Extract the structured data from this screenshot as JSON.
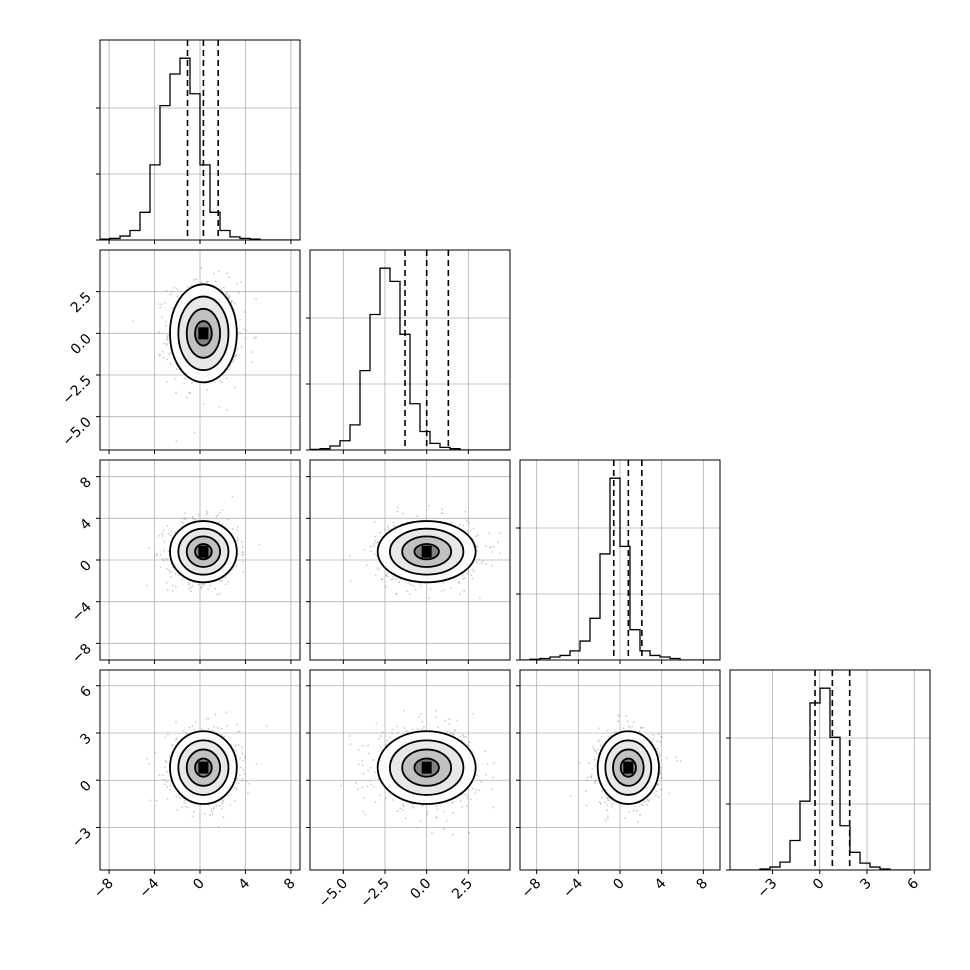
{
  "chart_data": {
    "type": "corner",
    "grid_enabled": true,
    "colors": {
      "line": "#000000",
      "grid": "#b0b0b0",
      "scatter": "#8c8c8c",
      "density_light": "#e6e6e6",
      "density_dark": "#000000"
    },
    "parameters": [
      {
        "index": 0,
        "mean": 0.3,
        "sigma": 1.4,
        "quantiles": [
          -1.1,
          0.3,
          1.6
        ],
        "xlim": [
          -8.8,
          8.8
        ],
        "ticks": [
          -8,
          -4,
          0,
          4,
          8
        ],
        "tick_labels": [
          "−8",
          "−4",
          "0",
          "4",
          "8"
        ]
      },
      {
        "index": 1,
        "mean": 0.0,
        "sigma": 1.4,
        "quantiles": [
          -1.3,
          0.0,
          1.3
        ],
        "xlim": [
          -7.0,
          5.0
        ],
        "ticks": [
          -5.0,
          -2.5,
          0.0,
          2.5
        ],
        "tick_labels": [
          "−5.0",
          "−2.5",
          "0.0",
          "2.5"
        ]
      },
      {
        "index": 2,
        "mean": 0.8,
        "sigma": 1.4,
        "quantiles": [
          -0.6,
          0.8,
          2.1
        ],
        "xlim": [
          -9.6,
          9.6
        ],
        "ticks": [
          -8,
          -4,
          0,
          4,
          8
        ],
        "tick_labels": [
          "−8",
          "−4",
          "0",
          "4",
          "8"
        ]
      },
      {
        "index": 3,
        "mean": 0.8,
        "sigma": 1.1,
        "quantiles": [
          -0.3,
          0.8,
          1.9
        ],
        "xlim": [
          -5.7,
          7.0
        ],
        "ticks": [
          -3,
          0,
          3,
          6
        ],
        "tick_labels": [
          "−3",
          "0",
          "3",
          "6"
        ]
      }
    ],
    "histograms": [
      {
        "param": 0,
        "bins": [
          -8.8,
          8.8
        ],
        "counts": [
          1,
          2,
          5,
          12,
          35,
          95,
          170,
          210,
          230,
          185,
          95,
          35,
          12,
          4,
          2,
          1,
          0,
          0,
          0,
          0
        ]
      },
      {
        "param": 1,
        "bins": [
          -7.0,
          5.0
        ],
        "counts": [
          1,
          2,
          6,
          14,
          38,
          120,
          205,
          275,
          255,
          175,
          70,
          28,
          10,
          4,
          2,
          0,
          0,
          0,
          0,
          0
        ]
      },
      {
        "param": 2,
        "bins": [
          -9.6,
          9.6
        ],
        "counts": [
          0,
          1,
          2,
          4,
          6,
          12,
          25,
          55,
          140,
          240,
          150,
          40,
          12,
          6,
          4,
          2,
          0,
          0,
          0,
          0
        ]
      },
      {
        "param": 3,
        "bins": [
          -5.7,
          7.0
        ],
        "counts": [
          0,
          0,
          0,
          1,
          3,
          8,
          30,
          70,
          170,
          185,
          135,
          45,
          18,
          7,
          3,
          1,
          0,
          0,
          0,
          0
        ]
      }
    ],
    "pairs": [
      {
        "x": 0,
        "y": 1,
        "rho": 0.0
      },
      {
        "x": 0,
        "y": 2,
        "rho": 0.0
      },
      {
        "x": 1,
        "y": 2,
        "rho": 0.0
      },
      {
        "x": 0,
        "y": 3,
        "rho": 0.0
      },
      {
        "x": 1,
        "y": 3,
        "rho": 0.0
      },
      {
        "x": 2,
        "y": 3,
        "rho": 0.0
      }
    ],
    "contour_sigma_levels": [
      0.5,
      1.0,
      1.5,
      2.0
    ]
  }
}
